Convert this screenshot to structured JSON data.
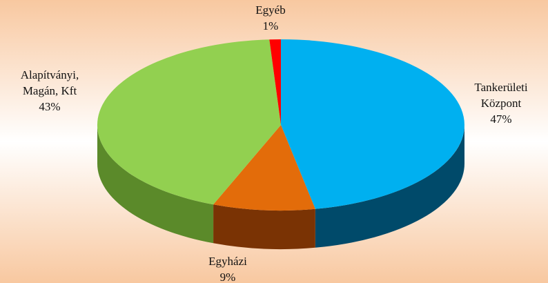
{
  "chart_data": {
    "type": "pie",
    "title": "",
    "slices": [
      {
        "label_lines": [
          "Tankerületi",
          "Központ"
        ],
        "value": 47,
        "value_label": "47%",
        "color": "#00b0f0",
        "side_color": "#004a6a"
      },
      {
        "label_lines": [
          "Egyházi"
        ],
        "value": 9,
        "value_label": "9%",
        "color": "#e36c0a",
        "side_color": "#7a3304"
      },
      {
        "label_lines": [
          "Alapítványi,",
          "Magán, Kft"
        ],
        "value": 43,
        "value_label": "43%",
        "color": "#92d050",
        "side_color": "#5b8a2a"
      },
      {
        "label_lines": [
          "Egyéb"
        ],
        "value": 1,
        "value_label": "1%",
        "color": "#ff0000",
        "side_color": "#8a0000"
      }
    ],
    "unit": "%",
    "style": "3d",
    "background": {
      "edge_color": "#f8c8a0",
      "center_color": "#ffffff"
    }
  }
}
